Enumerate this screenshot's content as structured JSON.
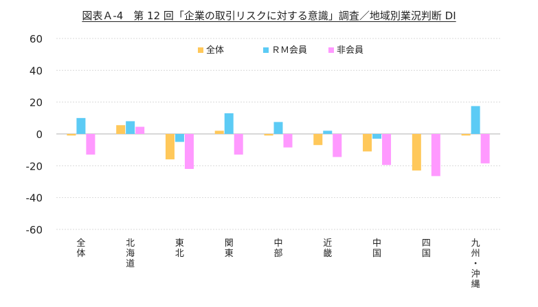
{
  "chart_data": {
    "type": "bar",
    "title": "図表Ａ-4　第 12 回「企業の取引リスクに対する意識」調査／地域別業況判断 DI",
    "xlabel": "",
    "ylabel": "",
    "ylim": [
      -60,
      60
    ],
    "yticks": [
      60,
      40,
      20,
      0,
      -20,
      -40,
      -60
    ],
    "grid": true,
    "legend_position": "top",
    "categories": [
      "全体",
      "北海道",
      "東北",
      "関東",
      "中部",
      "近畿",
      "中国",
      "四国",
      "九州・沖縄"
    ],
    "series": [
      {
        "name": "全体",
        "color": "#ffc85a",
        "values": [
          -1,
          5.5,
          -16,
          2,
          -1,
          -7,
          -11,
          -23,
          -1
        ]
      },
      {
        "name": "ＲＭ会員",
        "color": "#5ccbf5",
        "values": [
          10,
          8,
          -5,
          13,
          7.5,
          2,
          -3,
          0,
          17.5
        ]
      },
      {
        "name": "非会員",
        "color": "#ff99ff",
        "values": [
          -13,
          4.5,
          -22,
          -13,
          -8.5,
          -14.5,
          -19.5,
          -26.5,
          -18.5
        ]
      }
    ]
  }
}
